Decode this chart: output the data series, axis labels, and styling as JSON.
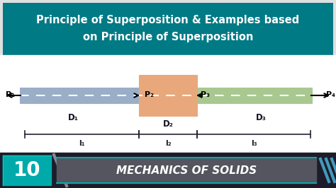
{
  "title_bg": "#007A85",
  "title_text_line1": "Principle of Superposition & Examples based",
  "title_text_line2": "on Principle of Superposition",
  "title_color": "#FFFFFF",
  "main_bg": "#F0F0F0",
  "bar1_color": "#9BAEC8",
  "bar2_color": "#E8A87C",
  "bar3_color": "#A8C890",
  "bar1_edge": "#7090AA",
  "bar2_edge": "#C07840",
  "bar3_edge": "#70A060",
  "footer_bg": "#1C1C2A",
  "footer_teal": "#00AAAA",
  "footer_banner": "#555560",
  "footer_stripe": "#4488AA",
  "footer_num": "10",
  "footer_text": "MECHANICS OF SOLIDS",
  "dashed_color": "#FFFFFF",
  "label_dark": "#111122",
  "dim_line_color": "#222233"
}
